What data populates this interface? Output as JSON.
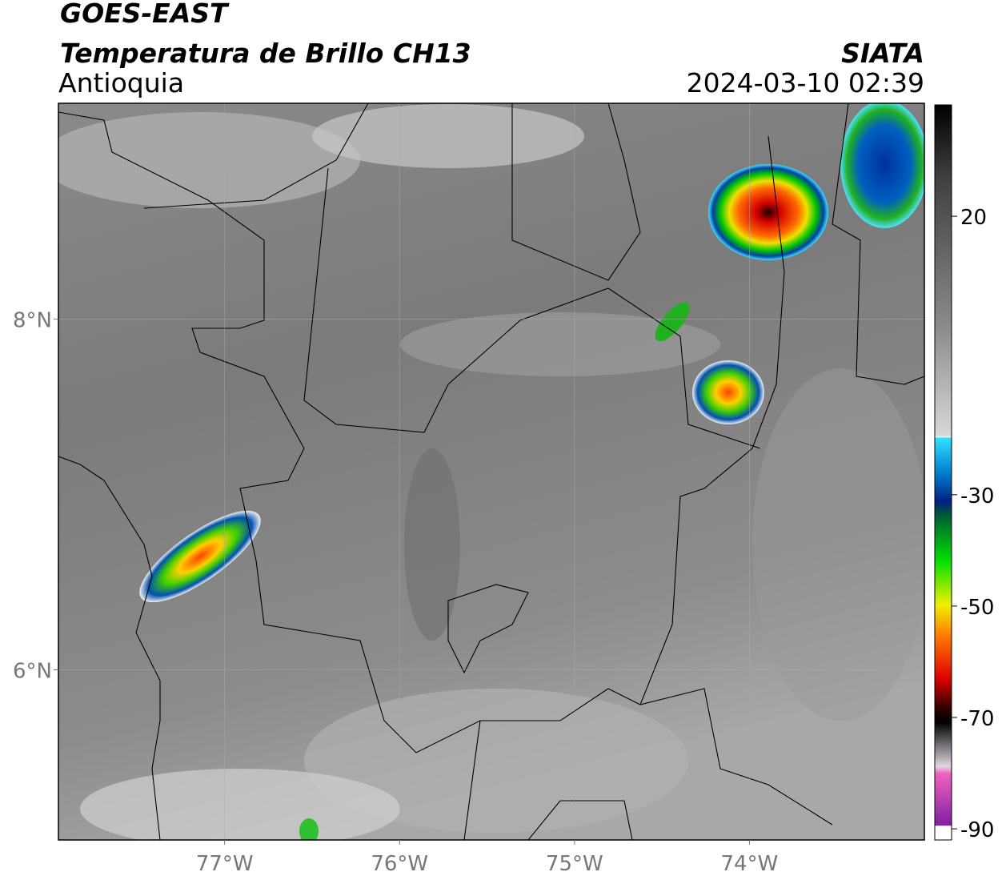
{
  "header": {
    "title": "GOES-EAST",
    "subtitle": "Temperatura de Brillo CH13",
    "region": "Antioquia",
    "source": "SIATA",
    "timestamp": "2024-03-10 02:39"
  },
  "map": {
    "xlim": [
      -77.95,
      -73.0
    ],
    "ylim": [
      5.03,
      9.23
    ],
    "xticks": [
      {
        "value": -77,
        "label": "77°W"
      },
      {
        "value": -76,
        "label": "76°W"
      },
      {
        "value": -75,
        "label": "75°W"
      },
      {
        "value": -74,
        "label": "74°W"
      }
    ],
    "yticks": [
      {
        "value": 6,
        "label": "6°N"
      },
      {
        "value": 8,
        "label": "8°N"
      }
    ],
    "grid": true,
    "colorbar": {
      "lim": [
        -92,
        40
      ],
      "ticks": [
        20,
        -30,
        -50,
        -70,
        -90
      ]
    }
  }
}
